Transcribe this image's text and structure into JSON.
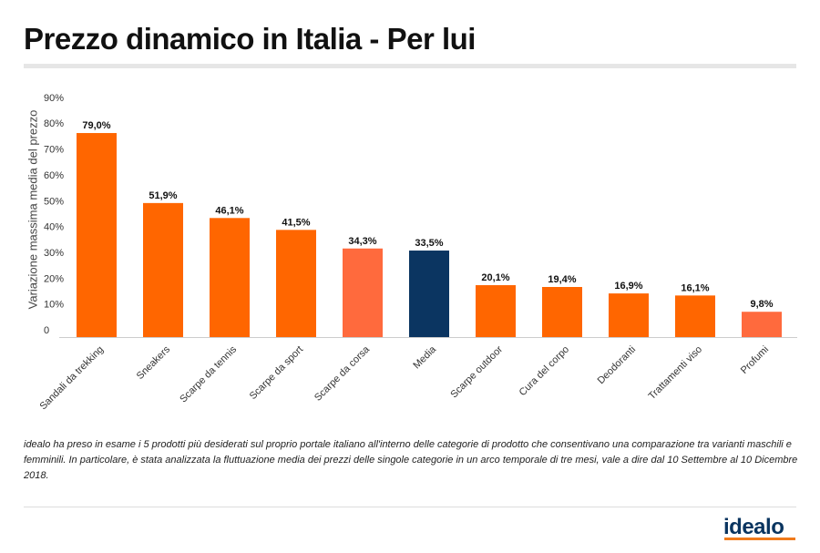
{
  "chart_data": {
    "type": "bar",
    "title": "Prezzo dinamico in Italia - Per lui",
    "xlabel": "",
    "ylabel": "Variazione massima media del prezzo",
    "ylim": [
      0,
      90
    ],
    "yticks": [
      "0",
      "10%",
      "20%",
      "30%",
      "40%",
      "50%",
      "60%",
      "70%",
      "80%",
      "90%"
    ],
    "categories": [
      "Sandali da trekking",
      "Sneakers",
      "Scarpe da tennis",
      "Scarpe da sport",
      "Scarpe da corsa",
      "Media",
      "Scarpe outdoor",
      "Cura del corpo",
      "Deodoranti",
      "Trattamenti viso",
      "Profumi"
    ],
    "values": [
      79.0,
      51.9,
      46.1,
      41.5,
      34.3,
      33.5,
      20.1,
      19.4,
      16.9,
      16.1,
      9.8
    ],
    "data_labels": [
      "79,0%",
      "51,9%",
      "46,1%",
      "41,5%",
      "34,3%",
      "33,5%",
      "20,1%",
      "19,4%",
      "16,9%",
      "16,1%",
      "9,8%"
    ],
    "colors": [
      "#ff6600",
      "#ff6600",
      "#ff6600",
      "#ff6600",
      "#ff6a3d",
      "#0b3561",
      "#ff6600",
      "#ff6600",
      "#ff6600",
      "#ff6600",
      "#ff6a3d"
    ],
    "grid": false,
    "legend": "none"
  },
  "note": "idealo ha preso in esame i 5 prodotti più desiderati sul proprio portale italiano all'interno delle categorie di prodotto che consentivano una comparazione tra varianti maschili e femminili. In particolare, è stata analizzata la fluttuazione media dei prezzi delle singole categorie in un arco temporale di tre mesi, vale a dire dal 10 Settembre al 10 Dicembre 2018.",
  "logo": "idealo"
}
